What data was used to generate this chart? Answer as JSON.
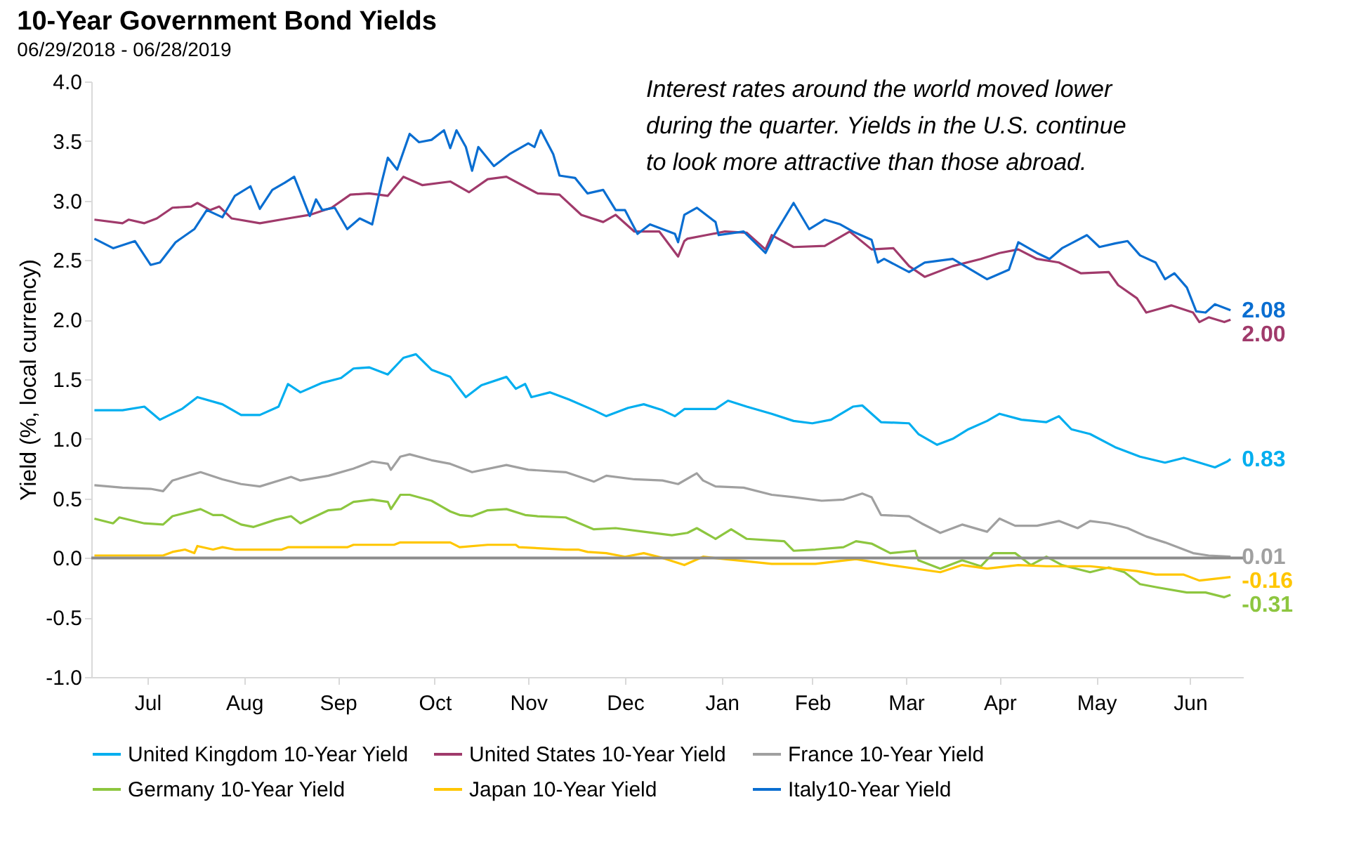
{
  "chart_data": {
    "type": "line",
    "title": "10-Year Government Bond Yields",
    "subtitle": "06/29/2018 - 06/28/2019",
    "ylabel": "Yield (%, local currency)",
    "xlim": [
      "2018-06-28",
      "2019-07-02"
    ],
    "xticks": [
      {
        "value": "2018-07-16",
        "label": "Jul"
      },
      {
        "value": "2018-08-16",
        "label": "Aug"
      },
      {
        "value": "2018-09-15",
        "label": "Sep"
      },
      {
        "value": "2018-10-16",
        "label": "Oct"
      },
      {
        "value": "2018-11-15",
        "label": "Nov"
      },
      {
        "value": "2018-12-16",
        "label": "Dec"
      },
      {
        "value": "2019-01-16",
        "label": "Jan"
      },
      {
        "value": "2019-02-14",
        "label": "Feb"
      },
      {
        "value": "2019-03-16",
        "label": "Mar"
      },
      {
        "value": "2019-04-15",
        "label": "Apr"
      },
      {
        "value": "2019-05-16",
        "label": "May"
      },
      {
        "value": "2019-06-15",
        "label": "Jun"
      }
    ],
    "ylim": [
      -1,
      4
    ],
    "yticks": [
      {
        "value": -1,
        "label": "-1.0"
      },
      {
        "value": -0.5,
        "label": "-0.5"
      },
      {
        "value": 0,
        "label": "0.0"
      },
      {
        "value": 0.5,
        "label": "0.5"
      },
      {
        "value": 1,
        "label": "1.0"
      },
      {
        "value": 1.5,
        "label": "1.5"
      },
      {
        "value": 2,
        "label": "2.0"
      },
      {
        "value": 2.5,
        "label": "2.5"
      },
      {
        "value": 3,
        "label": "3.0"
      },
      {
        "value": 3.5,
        "label": "3.5"
      },
      {
        "value": 4,
        "label": "4.0"
      }
    ],
    "legend": "bottom",
    "ref_lines": [
      {
        "axis": "y",
        "value": 0,
        "color": "#8c8c8c"
      }
    ],
    "annotations": [
      "Interest rates around the world moved lower during the quarter. Yields in the U.S. continue to look more attractive than those abroad.",
      {
        "text": "2.08",
        "x": "2019-06-28",
        "y": 2.08
      },
      {
        "text": "2.00",
        "x": "2019-06-28",
        "y": 2.0
      },
      {
        "text": "0.83",
        "x": "2019-06-28",
        "y": 0.83
      },
      {
        "text": "0.01",
        "x": "2019-06-28",
        "y": 0.01
      },
      {
        "text": "-0.16",
        "x": "2019-06-28",
        "y": -0.16
      },
      {
        "text": "-0.31",
        "x": "2019-06-28",
        "y": -0.31
      }
    ],
    "series": [
      {
        "name": "United Kingdom 10-Year Yield",
        "color": "#00aeef",
        "x": [
          "2018-06-29",
          "2018-07-08",
          "2018-07-15",
          "2018-07-20",
          "2018-07-27",
          "2018-08-01",
          "2018-08-09",
          "2018-08-15",
          "2018-08-21",
          "2018-08-27",
          "2018-08-30",
          "2018-09-03",
          "2018-09-10",
          "2018-09-16",
          "2018-09-20",
          "2018-09-25",
          "2018-10-01",
          "2018-10-06",
          "2018-10-10",
          "2018-10-15",
          "2018-10-21",
          "2018-10-26",
          "2018-10-31",
          "2018-11-08",
          "2018-11-11",
          "2018-11-14",
          "2018-11-16",
          "2018-11-22",
          "2018-11-28",
          "2018-12-06",
          "2018-12-10",
          "2018-12-17",
          "2018-12-22",
          "2018-12-28",
          "2019-01-01",
          "2019-01-04",
          "2019-01-14",
          "2019-01-18",
          "2019-01-24",
          "2019-02-01",
          "2019-02-08",
          "2019-02-14",
          "2019-02-20",
          "2019-02-27",
          "2019-03-02",
          "2019-03-08",
          "2019-03-17",
          "2019-03-20",
          "2019-03-26",
          "2019-03-31",
          "2019-04-05",
          "2019-04-11",
          "2019-04-15",
          "2019-04-22",
          "2019-04-30",
          "2019-05-04",
          "2019-05-08",
          "2019-05-14",
          "2019-05-22",
          "2019-05-30",
          "2019-06-07",
          "2019-06-13",
          "2019-06-23",
          "2019-06-27",
          "2019-06-28"
        ],
        "values": [
          1.24,
          1.24,
          1.27,
          1.16,
          1.25,
          1.35,
          1.29,
          1.2,
          1.2,
          1.27,
          1.46,
          1.39,
          1.47,
          1.51,
          1.59,
          1.6,
          1.54,
          1.68,
          1.71,
          1.58,
          1.52,
          1.35,
          1.45,
          1.52,
          1.42,
          1.46,
          1.35,
          1.39,
          1.33,
          1.24,
          1.19,
          1.26,
          1.29,
          1.24,
          1.19,
          1.25,
          1.25,
          1.32,
          1.27,
          1.21,
          1.15,
          1.13,
          1.16,
          1.27,
          1.28,
          1.14,
          1.13,
          1.04,
          0.95,
          1.0,
          1.08,
          1.15,
          1.21,
          1.16,
          1.14,
          1.19,
          1.08,
          1.04,
          0.93,
          0.85,
          0.8,
          0.84,
          0.76,
          0.81,
          0.83
        ]
      },
      {
        "name": "United States 10-Year Yield",
        "color": "#a03a6b",
        "x": [
          "2018-06-29",
          "2018-07-08",
          "2018-07-10",
          "2018-07-15",
          "2018-07-19",
          "2018-07-24",
          "2018-07-30",
          "2018-08-01",
          "2018-08-05",
          "2018-08-08",
          "2018-08-12",
          "2018-08-21",
          "2018-08-30",
          "2018-09-06",
          "2018-09-13",
          "2018-09-19",
          "2018-09-25",
          "2018-10-01",
          "2018-10-06",
          "2018-10-12",
          "2018-10-21",
          "2018-10-27",
          "2018-11-02",
          "2018-11-08",
          "2018-11-18",
          "2018-11-25",
          "2018-12-02",
          "2018-12-09",
          "2018-12-13",
          "2018-12-19",
          "2018-12-27",
          "2019-01-02",
          "2019-01-04",
          "2019-01-05",
          "2019-01-11",
          "2019-01-17",
          "2019-01-24",
          "2019-01-30",
          "2019-02-01",
          "2019-02-08",
          "2019-02-18",
          "2019-02-26",
          "2019-03-05",
          "2019-03-12",
          "2019-03-17",
          "2019-03-22",
          "2019-03-31",
          "2019-04-09",
          "2019-04-15",
          "2019-04-21",
          "2019-04-27",
          "2019-05-04",
          "2019-05-11",
          "2019-05-20",
          "2019-05-23",
          "2019-05-29",
          "2019-06-01",
          "2019-06-05",
          "2019-06-09",
          "2019-06-16",
          "2019-06-18",
          "2019-06-21",
          "2019-06-26",
          "2019-06-28"
        ],
        "values": [
          2.84,
          2.81,
          2.84,
          2.81,
          2.85,
          2.94,
          2.95,
          2.98,
          2.92,
          2.95,
          2.85,
          2.81,
          2.85,
          2.88,
          2.94,
          3.05,
          3.06,
          3.04,
          3.2,
          3.13,
          3.16,
          3.07,
          3.18,
          3.2,
          3.06,
          3.05,
          2.88,
          2.82,
          2.88,
          2.74,
          2.74,
          2.53,
          2.66,
          2.68,
          2.71,
          2.74,
          2.73,
          2.59,
          2.71,
          2.61,
          2.62,
          2.74,
          2.59,
          2.6,
          2.45,
          2.36,
          2.45,
          2.51,
          2.56,
          2.59,
          2.51,
          2.48,
          2.39,
          2.4,
          2.29,
          2.18,
          2.06,
          2.09,
          2.12,
          2.06,
          1.98,
          2.02,
          1.98,
          2.0
        ]
      },
      {
        "name": "France 10-Year Yield",
        "color": "#a0a0a0",
        "x": [
          "2018-06-29",
          "2018-07-08",
          "2018-07-17",
          "2018-07-21",
          "2018-07-24",
          "2018-08-02",
          "2018-08-09",
          "2018-08-15",
          "2018-08-21",
          "2018-08-31",
          "2018-09-03",
          "2018-09-12",
          "2018-09-20",
          "2018-09-26",
          "2018-10-01",
          "2018-10-02",
          "2018-10-05",
          "2018-10-08",
          "2018-10-15",
          "2018-10-21",
          "2018-10-28",
          "2018-11-08",
          "2018-11-15",
          "2018-11-27",
          "2018-12-06",
          "2018-12-10",
          "2018-12-19",
          "2018-12-28",
          "2019-01-02",
          "2019-01-08",
          "2019-01-10",
          "2019-01-14",
          "2019-01-23",
          "2019-02-01",
          "2019-02-08",
          "2019-02-17",
          "2019-02-24",
          "2019-03-02",
          "2019-03-05",
          "2019-03-08",
          "2019-03-17",
          "2019-03-21",
          "2019-03-27",
          "2019-04-03",
          "2019-04-11",
          "2019-04-15",
          "2019-04-20",
          "2019-04-27",
          "2019-05-04",
          "2019-05-10",
          "2019-05-14",
          "2019-05-20",
          "2019-05-26",
          "2019-06-01",
          "2019-06-07",
          "2019-06-16",
          "2019-06-21",
          "2019-06-28"
        ],
        "values": [
          0.61,
          0.59,
          0.58,
          0.56,
          0.65,
          0.72,
          0.66,
          0.62,
          0.6,
          0.68,
          0.65,
          0.69,
          0.75,
          0.81,
          0.79,
          0.74,
          0.85,
          0.87,
          0.82,
          0.79,
          0.72,
          0.78,
          0.74,
          0.72,
          0.64,
          0.69,
          0.66,
          0.65,
          0.62,
          0.71,
          0.65,
          0.6,
          0.59,
          0.53,
          0.51,
          0.48,
          0.49,
          0.54,
          0.51,
          0.36,
          0.35,
          0.29,
          0.21,
          0.28,
          0.22,
          0.33,
          0.27,
          0.27,
          0.31,
          0.25,
          0.31,
          0.29,
          0.25,
          0.18,
          0.13,
          0.04,
          0.02,
          0.01
        ]
      },
      {
        "name": "Germany 10-Year Yield",
        "color": "#8dc63f",
        "x": [
          "2018-06-29",
          "2018-07-05",
          "2018-07-07",
          "2018-07-15",
          "2018-07-21",
          "2018-07-24",
          "2018-08-02",
          "2018-08-06",
          "2018-08-09",
          "2018-08-15",
          "2018-08-19",
          "2018-08-26",
          "2018-08-31",
          "2018-09-03",
          "2018-09-12",
          "2018-09-16",
          "2018-09-20",
          "2018-09-26",
          "2018-10-01",
          "2018-10-02",
          "2018-10-05",
          "2018-10-08",
          "2018-10-15",
          "2018-10-19",
          "2018-10-21",
          "2018-10-24",
          "2018-10-28",
          "2018-11-02",
          "2018-11-08",
          "2018-11-14",
          "2018-11-18",
          "2018-11-27",
          "2018-12-06",
          "2018-12-13",
          "2018-12-22",
          "2018-12-31",
          "2019-01-05",
          "2019-01-08",
          "2019-01-14",
          "2019-01-19",
          "2019-01-24",
          "2019-02-05",
          "2019-02-08",
          "2019-02-15",
          "2019-02-24",
          "2019-02-28",
          "2019-03-05",
          "2019-03-11",
          "2019-03-19",
          "2019-03-20",
          "2019-03-27",
          "2019-04-03",
          "2019-04-09",
          "2019-04-13",
          "2019-04-20",
          "2019-04-25",
          "2019-04-30",
          "2019-05-05",
          "2019-05-14",
          "2019-05-20",
          "2019-05-25",
          "2019-05-30",
          "2019-06-05",
          "2019-06-14",
          "2019-06-20",
          "2019-06-26",
          "2019-06-28"
        ],
        "values": [
          0.33,
          0.29,
          0.34,
          0.29,
          0.28,
          0.35,
          0.41,
          0.36,
          0.36,
          0.28,
          0.26,
          0.32,
          0.35,
          0.29,
          0.4,
          0.41,
          0.47,
          0.49,
          0.47,
          0.41,
          0.53,
          0.53,
          0.48,
          0.42,
          0.39,
          0.36,
          0.35,
          0.4,
          0.41,
          0.36,
          0.35,
          0.34,
          0.24,
          0.25,
          0.22,
          0.19,
          0.21,
          0.25,
          0.16,
          0.24,
          0.16,
          0.14,
          0.06,
          0.07,
          0.09,
          0.14,
          0.12,
          0.04,
          0.06,
          -0.02,
          -0.09,
          -0.02,
          -0.07,
          0.04,
          0.04,
          -0.06,
          0.01,
          -0.06,
          -0.12,
          -0.08,
          -0.12,
          -0.22,
          -0.25,
          -0.29,
          -0.29,
          -0.33,
          -0.31
        ]
      },
      {
        "name": "Japan 10-Year Yield",
        "color": "#ffc600",
        "x": [
          "2018-06-29",
          "2018-07-21",
          "2018-07-24",
          "2018-07-28",
          "2018-07-31",
          "2018-08-01",
          "2018-08-06",
          "2018-08-09",
          "2018-08-13",
          "2018-08-28",
          "2018-08-30",
          "2018-09-18",
          "2018-09-20",
          "2018-10-03",
          "2018-10-05",
          "2018-10-21",
          "2018-10-24",
          "2018-11-02",
          "2018-11-11",
          "2018-11-12",
          "2018-11-27",
          "2018-12-01",
          "2018-12-04",
          "2018-12-10",
          "2018-12-16",
          "2018-12-22",
          "2018-12-28",
          "2019-01-04",
          "2019-01-10",
          "2019-01-17",
          "2019-02-01",
          "2019-02-15",
          "2019-02-28",
          "2019-03-11",
          "2019-03-27",
          "2019-04-03",
          "2019-04-11",
          "2019-04-21",
          "2019-04-30",
          "2019-05-14",
          "2019-05-29",
          "2019-06-04",
          "2019-06-13",
          "2019-06-18",
          "2019-06-28"
        ],
        "values": [
          0.02,
          0.02,
          0.05,
          0.07,
          0.04,
          0.1,
          0.07,
          0.09,
          0.07,
          0.07,
          0.09,
          0.09,
          0.11,
          0.11,
          0.13,
          0.13,
          0.09,
          0.11,
          0.11,
          0.09,
          0.07,
          0.07,
          0.05,
          0.04,
          0.01,
          0.04,
          0.0,
          -0.06,
          0.01,
          -0.01,
          -0.05,
          -0.05,
          -0.01,
          -0.06,
          -0.12,
          -0.06,
          -0.09,
          -0.06,
          -0.07,
          -0.07,
          -0.11,
          -0.14,
          -0.14,
          -0.19,
          -0.16
        ]
      },
      {
        "name": "Italy10-Year Yield",
        "color": "#0a6ed1",
        "x": [
          "2018-06-29",
          "2018-07-05",
          "2018-07-12",
          "2018-07-17",
          "2018-07-20",
          "2018-07-25",
          "2018-07-31",
          "2018-08-04",
          "2018-08-09",
          "2018-08-13",
          "2018-08-18",
          "2018-08-21",
          "2018-08-25",
          "2018-08-29",
          "2018-09-01",
          "2018-09-06",
          "2018-09-08",
          "2018-09-10",
          "2018-09-14",
          "2018-09-18",
          "2018-09-22",
          "2018-09-26",
          "2018-09-29",
          "2018-10-01",
          "2018-10-04",
          "2018-10-08",
          "2018-10-11",
          "2018-10-15",
          "2018-10-19",
          "2018-10-21",
          "2018-10-23",
          "2018-10-26",
          "2018-10-28",
          "2018-10-30",
          "2018-11-04",
          "2018-11-09",
          "2018-11-15",
          "2018-11-17",
          "2018-11-19",
          "2018-11-23",
          "2018-11-25",
          "2018-11-30",
          "2018-12-04",
          "2018-12-09",
          "2018-12-13",
          "2018-12-16",
          "2018-12-20",
          "2018-12-24",
          "2019-01-01",
          "2019-01-02",
          "2019-01-04",
          "2019-01-08",
          "2019-01-14",
          "2019-01-15",
          "2019-01-23",
          "2019-01-30",
          "2019-02-02",
          "2019-02-08",
          "2019-02-13",
          "2019-02-18",
          "2019-02-23",
          "2019-02-27",
          "2019-03-05",
          "2019-03-07",
          "2019-03-09",
          "2019-03-17",
          "2019-03-22",
          "2019-03-31",
          "2019-04-11",
          "2019-04-18",
          "2019-04-21",
          "2019-04-27",
          "2019-05-01",
          "2019-05-05",
          "2019-05-13",
          "2019-05-17",
          "2019-05-22",
          "2019-05-26",
          "2019-05-30",
          "2019-06-04",
          "2019-06-07",
          "2019-06-10",
          "2019-06-14",
          "2019-06-17",
          "2019-06-20",
          "2019-06-23",
          "2019-06-28"
        ],
        "values": [
          2.68,
          2.6,
          2.66,
          2.46,
          2.48,
          2.65,
          2.76,
          2.92,
          2.86,
          3.04,
          3.12,
          2.93,
          3.09,
          3.15,
          3.2,
          2.87,
          3.01,
          2.92,
          2.94,
          2.76,
          2.85,
          2.8,
          3.15,
          3.36,
          3.26,
          3.56,
          3.49,
          3.51,
          3.59,
          3.44,
          3.59,
          3.45,
          3.25,
          3.45,
          3.29,
          3.39,
          3.48,
          3.45,
          3.59,
          3.39,
          3.21,
          3.19,
          3.06,
          3.09,
          2.92,
          2.92,
          2.72,
          2.8,
          2.72,
          2.65,
          2.88,
          2.94,
          2.82,
          2.71,
          2.74,
          2.56,
          2.72,
          2.98,
          2.76,
          2.84,
          2.8,
          2.74,
          2.67,
          2.48,
          2.51,
          2.4,
          2.48,
          2.51,
          2.34,
          2.42,
          2.65,
          2.56,
          2.51,
          2.6,
          2.71,
          2.61,
          2.64,
          2.66,
          2.54,
          2.48,
          2.34,
          2.39,
          2.27,
          2.07,
          2.06,
          2.13,
          2.08
        ]
      }
    ]
  }
}
